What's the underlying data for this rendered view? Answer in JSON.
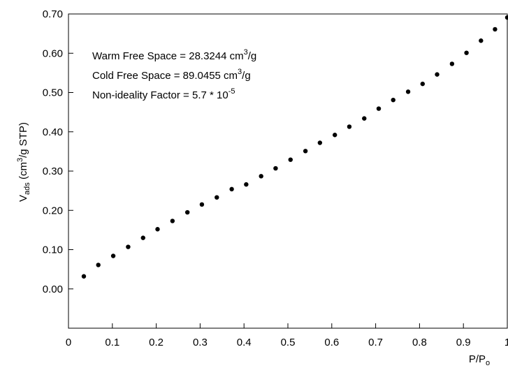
{
  "chart_data": {
    "type": "scatter",
    "title": "",
    "xlabel": {
      "main": "P/P",
      "sub": "o"
    },
    "ylabel": {
      "pre": "V",
      "sub": "ads",
      "mid": " (cm",
      "sup": "3",
      "post": "/g STP)"
    },
    "xlim": [
      0,
      1.0
    ],
    "ylim": [
      -0.1,
      0.7
    ],
    "x_ticks": [
      {
        "value": 0,
        "label": "0"
      },
      {
        "value": 0.1,
        "label": "0.1"
      },
      {
        "value": 0.2,
        "label": "0.2"
      },
      {
        "value": 0.3,
        "label": "0.3"
      },
      {
        "value": 0.4,
        "label": "0.4"
      },
      {
        "value": 0.5,
        "label": "0.5"
      },
      {
        "value": 0.6,
        "label": "0.6"
      },
      {
        "value": 0.7,
        "label": "0.7"
      },
      {
        "value": 0.8,
        "label": "0.8"
      },
      {
        "value": 0.9,
        "label": "0.9"
      },
      {
        "value": 1.0,
        "label": "1"
      }
    ],
    "y_ticks": [
      {
        "value": 0.0,
        "label": "0.00"
      },
      {
        "value": 0.1,
        "label": "0.10"
      },
      {
        "value": 0.2,
        "label": "0.20"
      },
      {
        "value": 0.3,
        "label": "0.30"
      },
      {
        "value": 0.4,
        "label": "0.40"
      },
      {
        "value": 0.5,
        "label": "0.50"
      },
      {
        "value": 0.6,
        "label": "0.60"
      },
      {
        "value": 0.7,
        "label": "0.70"
      }
    ],
    "grid": false,
    "marker_color": "#000000",
    "annotations": [
      {
        "pre": "Warm Free Space = 28.3244 cm",
        "sup": "3",
        "post": "/g"
      },
      {
        "pre": "Cold Free Space = 89.0455 cm",
        "sup": "3",
        "post": "/g"
      },
      {
        "pre": "Non-ideality Factor = 5.7 * 10",
        "sup": "-5",
        "post": ""
      }
    ],
    "series": [
      {
        "points": [
          [
            0.035,
            0.032
          ],
          [
            0.068,
            0.061
          ],
          [
            0.102,
            0.084
          ],
          [
            0.136,
            0.107
          ],
          [
            0.17,
            0.13
          ],
          [
            0.203,
            0.152
          ],
          [
            0.237,
            0.173
          ],
          [
            0.271,
            0.195
          ],
          [
            0.304,
            0.215
          ],
          [
            0.338,
            0.233
          ],
          [
            0.372,
            0.254
          ],
          [
            0.405,
            0.266
          ],
          [
            0.439,
            0.287
          ],
          [
            0.472,
            0.307
          ],
          [
            0.506,
            0.329
          ],
          [
            0.54,
            0.351
          ],
          [
            0.573,
            0.372
          ],
          [
            0.607,
            0.392
          ],
          [
            0.64,
            0.413
          ],
          [
            0.674,
            0.434
          ],
          [
            0.707,
            0.459
          ],
          [
            0.74,
            0.481
          ],
          [
            0.774,
            0.502
          ],
          [
            0.807,
            0.522
          ],
          [
            0.84,
            0.546
          ],
          [
            0.874,
            0.573
          ],
          [
            0.907,
            0.601
          ],
          [
            0.94,
            0.632
          ],
          [
            0.972,
            0.661
          ],
          [
            1.0,
            0.691
          ]
        ]
      }
    ]
  }
}
